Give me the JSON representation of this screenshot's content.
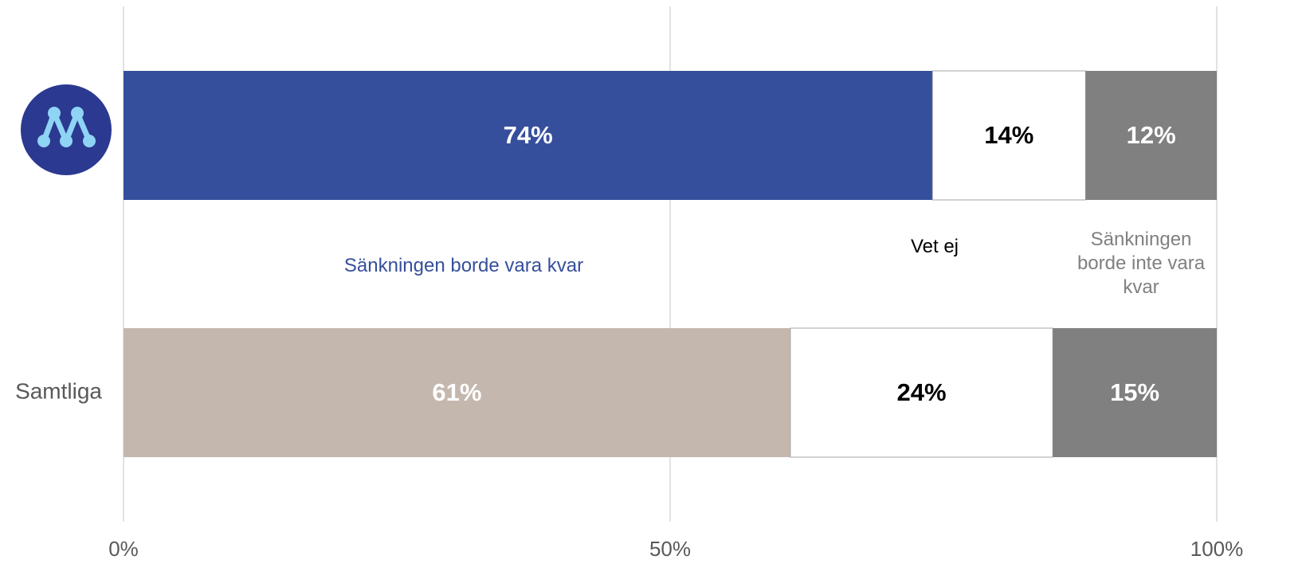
{
  "chart_data": {
    "type": "stacked_bar_horizontal",
    "categories": [
      null,
      "Samtliga"
    ],
    "series": [
      {
        "name": "Sänkningen borde vara kvar",
        "color": "#364f9c",
        "colors": [
          "#364f9c",
          "#c4b7ae"
        ],
        "values": [
          74,
          61
        ],
        "value_labels": [
          "74%",
          "61%"
        ]
      },
      {
        "name": "Vet ej",
        "color": "#ffffff",
        "values": [
          14,
          24
        ],
        "value_labels": [
          "14%",
          "24%"
        ]
      },
      {
        "name": "Sänkningen borde inte vara kvar",
        "color": "#808080",
        "values": [
          12,
          15
        ],
        "value_labels": [
          "12%",
          "15%"
        ]
      }
    ],
    "xlim": [
      0,
      100
    ],
    "xticks": [
      {
        "value": 0,
        "label": "0%"
      },
      {
        "value": 50,
        "label": "50%"
      },
      {
        "value": 100,
        "label": "100%"
      }
    ],
    "grid": true
  }
}
